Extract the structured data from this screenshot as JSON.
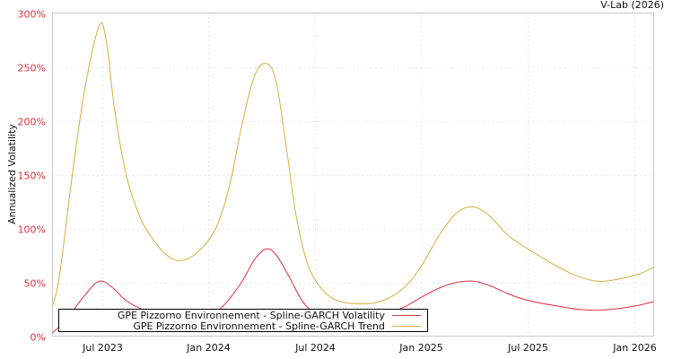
{
  "watermark": "V-Lab (2026)",
  "chart_data": {
    "type": "line",
    "title": "",
    "xlabel": "",
    "ylabel": "Annualized Volatility",
    "xlim": [
      2023.268,
      2026.092
    ],
    "ylim": [
      0,
      300
    ],
    "grid": true,
    "legend_position": "bottom-left",
    "yticks": [
      {
        "value": 0,
        "label": "0%"
      },
      {
        "value": 50,
        "label": "50%"
      },
      {
        "value": 100,
        "label": "100%"
      },
      {
        "value": 150,
        "label": "150%"
      },
      {
        "value": 200,
        "label": "200%"
      },
      {
        "value": 250,
        "label": "250%"
      },
      {
        "value": 300,
        "label": "300%"
      }
    ],
    "xticks": [
      {
        "value": 2023.5,
        "label": "Jul 2023"
      },
      {
        "value": 2024.0,
        "label": "Jan 2024"
      },
      {
        "value": 2024.5,
        "label": "Jul 2024"
      },
      {
        "value": 2025.0,
        "label": "Jan 2025"
      },
      {
        "value": 2025.5,
        "label": "Jul 2025"
      },
      {
        "value": 2026.0,
        "label": "Jan 2026"
      }
    ],
    "series": [
      {
        "name": "GPE Pizzorno Environnement - Spline-GARCH Volatility",
        "color": "#e0303f",
        "x": [
          2023.268,
          2023.33,
          2023.42,
          2023.487,
          2023.55,
          2023.614,
          2023.7,
          2023.8,
          2023.867,
          2023.95,
          2024.035,
          2024.1,
          2024.162,
          2024.22,
          2024.275,
          2024.32,
          2024.38,
          2024.44,
          2024.5,
          2024.6,
          2024.73,
          2024.82,
          2024.92,
          2025.0,
          2025.089,
          2025.17,
          2025.245,
          2025.32,
          2025.4,
          2025.468,
          2025.55,
          2025.637,
          2025.73,
          2025.826,
          2025.9,
          2025.974,
          2026.03,
          2026.092
        ],
        "y": [
          3,
          15,
          38,
          51,
          45,
          33,
          24,
          18,
          15,
          16,
          22,
          35,
          52,
          72,
          81,
          75,
          55,
          33,
          22,
          17,
          17,
          20,
          27,
          36,
          45,
          50,
          51,
          47,
          40,
          35,
          31,
          28,
          25,
          24,
          25,
          27,
          29,
          32
        ]
      },
      {
        "name": "GPE Pizzorno Environnement - Spline-GARCH Trend",
        "color": "#d4b040",
        "x": [
          2023.268,
          2023.3,
          2023.361,
          2023.42,
          2023.487,
          2023.52,
          2023.56,
          2023.614,
          2023.68,
          2023.74,
          2023.8,
          2023.867,
          2023.95,
          2024.035,
          2024.1,
          2024.162,
          2024.22,
          2024.275,
          2024.32,
          2024.37,
          2024.414,
          2024.47,
          2024.541,
          2024.62,
          2024.73,
          2024.82,
          2024.92,
          2025.0,
          2025.089,
          2025.17,
          2025.245,
          2025.32,
          2025.4,
          2025.468,
          2025.55,
          2025.637,
          2025.73,
          2025.826,
          2025.9,
          2025.974,
          2026.03,
          2026.092
        ],
        "y": [
          28,
          55,
          150,
          230,
          288,
          275,
          210,
          150,
          110,
          90,
          76,
          70,
          78,
          100,
          140,
          200,
          243,
          253,
          235,
          170,
          110,
          65,
          42,
          32,
          30,
          33,
          45,
          65,
          95,
          115,
          120,
          112,
          95,
          85,
          75,
          65,
          56,
          51,
          52,
          55,
          58,
          64
        ]
      }
    ]
  }
}
